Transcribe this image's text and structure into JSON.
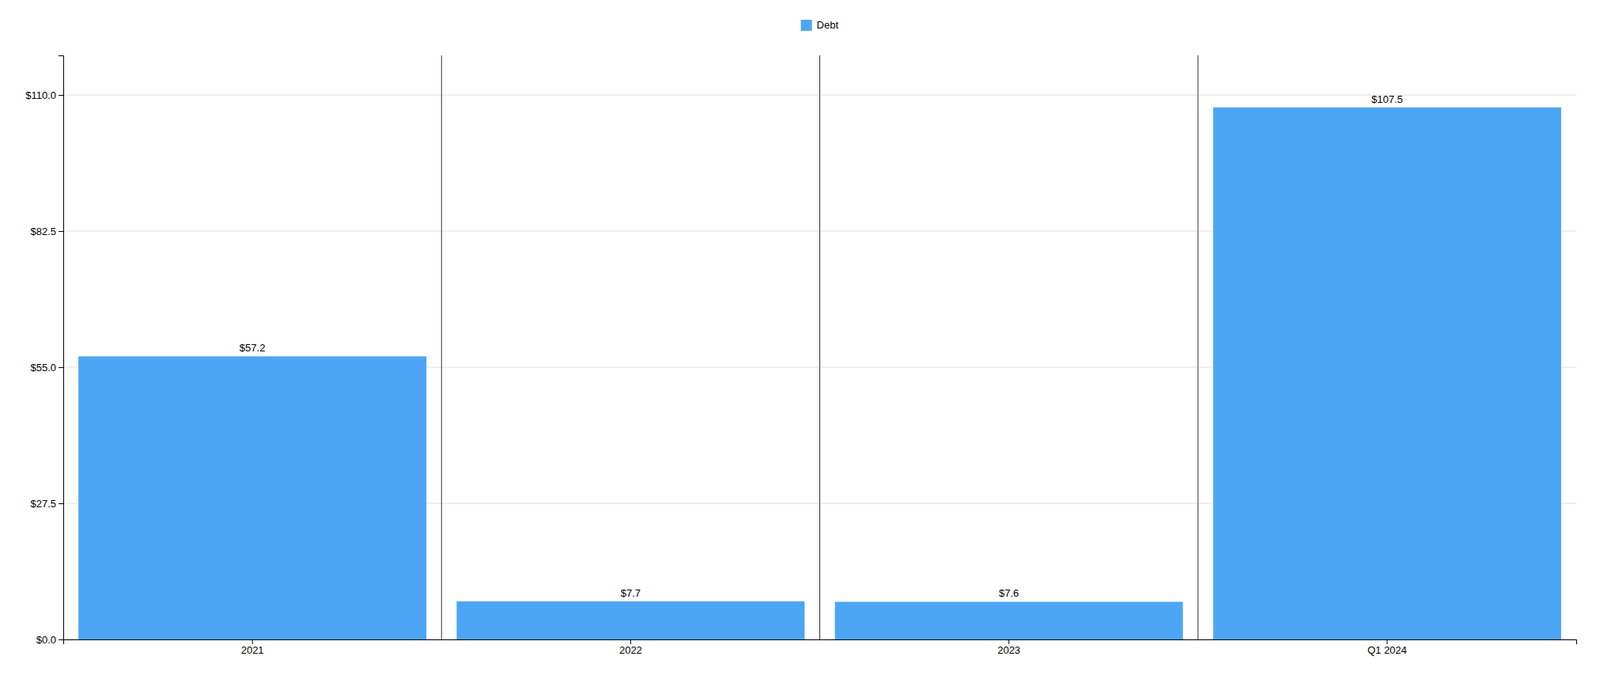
{
  "chart_data": {
    "type": "bar",
    "categories": [
      "2021",
      "2022",
      "2023",
      "Q1 2024"
    ],
    "series": [
      {
        "name": "Debt",
        "color": "#4DA6F5",
        "values": [
          57.2,
          7.7,
          7.6,
          107.5
        ],
        "value_labels": [
          "$57.2",
          "$7.7",
          "$7.6",
          "$107.5"
        ]
      }
    ],
    "ylim": [
      0,
      118
    ],
    "yticks": [
      {
        "value": 0.0,
        "label": "$0.0"
      },
      {
        "value": 27.5,
        "label": "$27.5"
      },
      {
        "value": 55.0,
        "label": "$55.0"
      },
      {
        "value": 82.5,
        "label": "$82.5"
      },
      {
        "value": 110.0,
        "label": "$110.0"
      }
    ],
    "grid": true,
    "legend": "top",
    "data_labels": true
  }
}
